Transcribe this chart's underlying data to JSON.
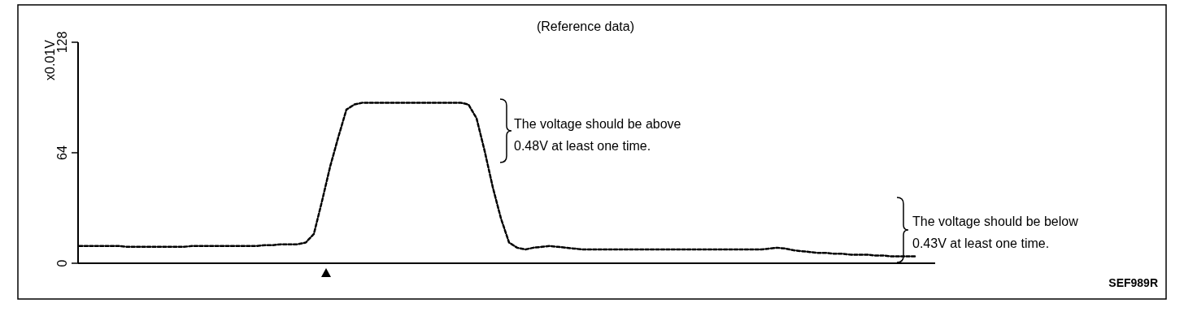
{
  "chart_data": {
    "type": "line",
    "title": "(Reference data)",
    "ylabel": "x0.01V",
    "categories": [
      null,
      null,
      null,
      null,
      null,
      null,
      null,
      null,
      null,
      null,
      null,
      null,
      null,
      null,
      null,
      null,
      null,
      null,
      null,
      null,
      null,
      null,
      null,
      null,
      null,
      null,
      null,
      null,
      null,
      null,
      null,
      null,
      null,
      null,
      null,
      null,
      null,
      null,
      null,
      null,
      null,
      null,
      null,
      null,
      null,
      null,
      null,
      null,
      null,
      null,
      null,
      null,
      null,
      null,
      null,
      null,
      null,
      null,
      null,
      null,
      null,
      null,
      null,
      null,
      null,
      null,
      null,
      null,
      null,
      null,
      null,
      null,
      null,
      null,
      null,
      null,
      null,
      null,
      null,
      null,
      null,
      null,
      null,
      null,
      null,
      null,
      null,
      null,
      null,
      null,
      null,
      null,
      null,
      null,
      null,
      null,
      null,
      null,
      null,
      null,
      null,
      null,
      null,
      null,
      null,
      null
    ],
    "series": [
      {
        "color": "#000000",
        "values": [
          10,
          10,
          10,
          10,
          10,
          10,
          9.5,
          9.5,
          9.5,
          9.5,
          9.5,
          9.5,
          9.5,
          9.5,
          10,
          10,
          10,
          10,
          10,
          10,
          10,
          10,
          10,
          10.5,
          10.5,
          11,
          11,
          11,
          12,
          17,
          36,
          56,
          73,
          89,
          92,
          93,
          93,
          93,
          93,
          93,
          93,
          93,
          93,
          93,
          93,
          93,
          93,
          93,
          92,
          84,
          65,
          44,
          26,
          12,
          9,
          8,
          9,
          9.5,
          10,
          9.5,
          9,
          8.5,
          8,
          8,
          8,
          8,
          8,
          8,
          8,
          8,
          8,
          8,
          8,
          8,
          8,
          8,
          8,
          8,
          8,
          8,
          8,
          8,
          8,
          8,
          8,
          8.5,
          9,
          8.5,
          7.5,
          7,
          6.5,
          6,
          6,
          5.5,
          5.5,
          5,
          5,
          5,
          4.5,
          4.5,
          4,
          4,
          4,
          4,
          null,
          null
        ]
      }
    ],
    "ylim": [
      0,
      128
    ],
    "yticks": [
      0,
      64,
      128
    ],
    "line_style": "dashed",
    "annotations": [
      "The voltage should be above\n0.48V at least one time.",
      "The voltage should be below\n0.43V at least one time.",
      "SEF989R"
    ]
  }
}
